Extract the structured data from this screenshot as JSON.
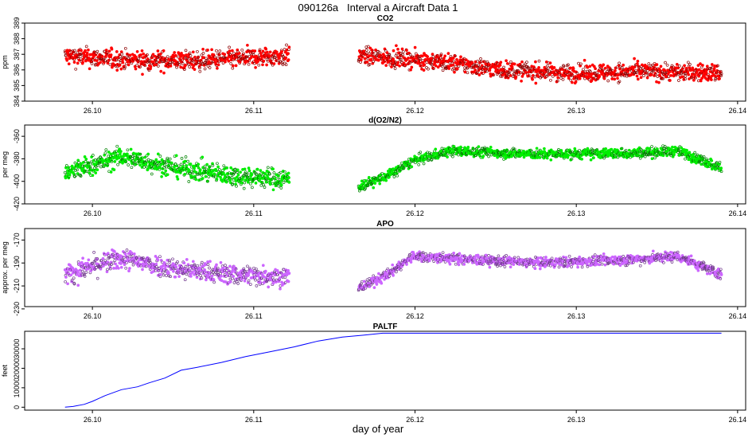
{
  "figure": {
    "title": "090126a   Interval a Aircraft Data 1",
    "xlabel": "day of year"
  },
  "colors": {
    "co2": "#ff0000",
    "o2n2": "#00ee00",
    "apo": "#cc66ff",
    "paltf": "#0000ff"
  },
  "chart_data": [
    {
      "type": "scatter",
      "title": "CO2",
      "ylabel": "ppm",
      "xlim": [
        26.0958,
        26.1405
      ],
      "ylim": [
        384,
        389
      ],
      "xticks": [
        "26.10",
        "26.11",
        "26.12",
        "26.13",
        "26.14"
      ],
      "xtick_values": [
        26.1,
        26.11,
        26.12,
        26.13,
        26.14
      ],
      "yticks": [
        "384",
        "385",
        "386",
        "387",
        "388",
        "389"
      ],
      "ytick_values": [
        384,
        385,
        386,
        387,
        388,
        389
      ],
      "segments": [
        {
          "x_start": 26.0983,
          "x_end": 26.1122,
          "y_profile": [
            [
              0,
              386.9
            ],
            [
              0.3,
              386.6
            ],
            [
              0.6,
              386.6
            ],
            [
              1,
              386.9
            ]
          ],
          "noise": 0.55
        },
        {
          "x_start": 26.1165,
          "x_end": 26.139,
          "y_profile": [
            [
              0,
              386.9
            ],
            [
              0.2,
              386.6
            ],
            [
              0.4,
              386.0
            ],
            [
              0.6,
              385.8
            ],
            [
              0.8,
              385.9
            ],
            [
              1,
              385.8
            ]
          ],
          "noise": 0.5
        }
      ]
    },
    {
      "type": "scatter",
      "title": "d(O2/N2)",
      "ylabel": "per meg",
      "xlim": [
        26.0958,
        26.1405
      ],
      "ylim": [
        -420,
        -350
      ],
      "xticks": [
        "26.10",
        "26.11",
        "26.12",
        "26.13",
        "26.14"
      ],
      "xtick_values": [
        26.1,
        26.11,
        26.12,
        26.13,
        26.14
      ],
      "yticks": [
        "-420",
        "-400",
        "-380",
        "-360"
      ],
      "ytick_values": [
        -420,
        -400,
        -380,
        -360
      ],
      "segments": [
        {
          "x_start": 26.0983,
          "x_end": 26.1122,
          "y_profile": [
            [
              0,
              -393
            ],
            [
              0.25,
              -378
            ],
            [
              0.5,
              -388
            ],
            [
              0.75,
              -395
            ],
            [
              1,
              -398
            ]
          ],
          "noise": 8
        },
        {
          "x_start": 26.1165,
          "x_end": 26.139,
          "y_profile": [
            [
              0,
              -405
            ],
            [
              0.08,
              -395
            ],
            [
              0.15,
              -382
            ],
            [
              0.25,
              -373
            ],
            [
              0.5,
              -376
            ],
            [
              0.75,
              -375
            ],
            [
              0.88,
              -373
            ],
            [
              1,
              -388
            ]
          ],
          "noise": 4
        }
      ]
    },
    {
      "type": "scatter",
      "title": "APO",
      "ylabel": "approx. per meg",
      "xlim": [
        26.0958,
        26.1405
      ],
      "ylim": [
        -228,
        -160
      ],
      "xticks": [
        "26.10",
        "26.11",
        "26.12",
        "26.13",
        "26.14"
      ],
      "xtick_values": [
        26.1,
        26.11,
        26.12,
        26.13,
        26.14
      ],
      "yticks": [
        "-230",
        "-210",
        "-190",
        "-170"
      ],
      "ytick_values": [
        -230,
        -210,
        -190,
        -170
      ],
      "segments": [
        {
          "x_start": 26.0983,
          "x_end": 26.1122,
          "y_profile": [
            [
              0,
              -200
            ],
            [
              0.25,
              -186
            ],
            [
              0.5,
              -195
            ],
            [
              0.75,
              -200
            ],
            [
              1,
              -202
            ]
          ],
          "noise": 8
        },
        {
          "x_start": 26.1165,
          "x_end": 26.139,
          "y_profile": [
            [
              0,
              -212
            ],
            [
              0.08,
              -200
            ],
            [
              0.15,
              -184
            ],
            [
              0.3,
              -187
            ],
            [
              0.5,
              -190
            ],
            [
              0.75,
              -187
            ],
            [
              0.88,
              -184
            ],
            [
              1,
              -200
            ]
          ],
          "noise": 4
        }
      ]
    },
    {
      "type": "line",
      "title": "PALTF",
      "ylabel": "feet",
      "xlim": [
        26.0958,
        26.1405
      ],
      "ylim": [
        -1500,
        39000
      ],
      "xticks": [
        "26.10",
        "26.11",
        "26.12",
        "26.13",
        "26.14"
      ],
      "xtick_values": [
        26.1,
        26.11,
        26.12,
        26.13,
        26.14
      ],
      "yticks": [
        "0",
        "10000",
        "20000",
        "30000"
      ],
      "ytick_values": [
        0,
        10000,
        20000,
        30000
      ],
      "x": [
        26.0983,
        26.0988,
        26.0995,
        26.1,
        26.1008,
        26.1018,
        26.1028,
        26.1035,
        26.1045,
        26.1055,
        26.1065,
        26.108,
        26.1095,
        26.111,
        26.1125,
        26.114,
        26.1155,
        26.1168,
        26.118,
        26.12,
        26.125,
        26.13,
        26.135,
        26.139
      ],
      "y": [
        0,
        400,
        1500,
        3000,
        6000,
        9000,
        10500,
        12500,
        15000,
        19000,
        20500,
        23000,
        26000,
        28500,
        31000,
        34000,
        36000,
        37000,
        38000,
        38000,
        38000,
        38000,
        38000,
        38000
      ]
    }
  ]
}
